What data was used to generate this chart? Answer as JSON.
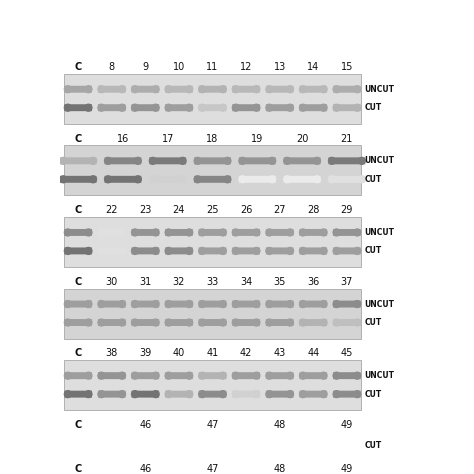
{
  "figure_bg": "#ffffff",
  "gel_bg": "#dcdcdc",
  "gel_bg2": "#c8c8c8",
  "text_color": "#111111",
  "panels": [
    {
      "labels": [
        "C",
        "8",
        "9",
        "10",
        "11",
        "12",
        "13",
        "14",
        "15"
      ],
      "n_lanes": 9,
      "has_uncut": true,
      "has_cut": true,
      "uncut_darks": [
        0.35,
        0.28,
        0.32,
        0.28,
        0.3,
        0.28,
        0.28,
        0.28,
        0.32
      ],
      "cut_darks": [
        0.55,
        0.38,
        0.42,
        0.38,
        0.22,
        0.42,
        0.38,
        0.38,
        0.3
      ]
    },
    {
      "labels": [
        "C",
        "16",
        "17",
        "18",
        "19",
        "20",
        "21"
      ],
      "n_lanes": 7,
      "has_uncut": true,
      "has_cut": true,
      "uncut_darks": [
        0.3,
        0.48,
        0.52,
        0.42,
        0.42,
        0.42,
        0.52
      ],
      "cut_darks": [
        0.55,
        0.55,
        0.18,
        0.48,
        0.08,
        0.08,
        0.12
      ]
    },
    {
      "labels": [
        "C",
        "22",
        "23",
        "24",
        "25",
        "26",
        "27",
        "28",
        "29"
      ],
      "n_lanes": 9,
      "has_uncut": true,
      "has_cut": true,
      "uncut_darks": [
        0.45,
        0.12,
        0.42,
        0.42,
        0.38,
        0.38,
        0.38,
        0.38,
        0.42
      ],
      "cut_darks": [
        0.55,
        0.12,
        0.45,
        0.45,
        0.38,
        0.38,
        0.38,
        0.38,
        0.38
      ]
    },
    {
      "labels": [
        "C",
        "30",
        "31",
        "32",
        "33",
        "34",
        "35",
        "36",
        "37"
      ],
      "n_lanes": 9,
      "has_uncut": true,
      "has_cut": true,
      "uncut_darks": [
        0.38,
        0.38,
        0.38,
        0.38,
        0.38,
        0.38,
        0.38,
        0.38,
        0.45
      ],
      "cut_darks": [
        0.38,
        0.38,
        0.38,
        0.38,
        0.38,
        0.38,
        0.38,
        0.3,
        0.25
      ]
    },
    {
      "labels": [
        "C",
        "38",
        "39",
        "40",
        "41",
        "42",
        "43",
        "44",
        "45"
      ],
      "n_lanes": 9,
      "has_uncut": true,
      "has_cut": true,
      "uncut_darks": [
        0.38,
        0.42,
        0.38,
        0.38,
        0.3,
        0.38,
        0.38,
        0.38,
        0.45
      ],
      "cut_darks": [
        0.55,
        0.42,
        0.55,
        0.3,
        0.45,
        0.18,
        0.42,
        0.38,
        0.45
      ]
    },
    {
      "labels": [
        "C",
        "46",
        "47",
        "48",
        "49"
      ],
      "n_lanes": 5,
      "has_uncut": false,
      "has_cut": true,
      "uncut_darks": [],
      "cut_darks": [
        0.55,
        0.18,
        0.48,
        0.35,
        0.45
      ]
    }
  ]
}
